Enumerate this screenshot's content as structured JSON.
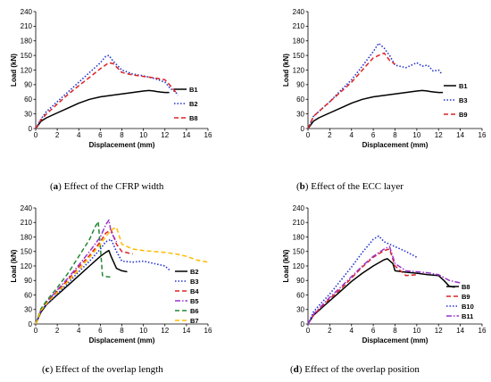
{
  "captions": [
    {
      "label": "a",
      "text": "Effect of the CFRP width"
    },
    {
      "label": "b",
      "text": "Effect of the ECC layer"
    },
    {
      "label": "c",
      "text": "Effect of the overlap length"
    },
    {
      "label": "d",
      "text": "Effect of the overlap position"
    }
  ],
  "chart_data": [
    {
      "type": "line",
      "xlabel": "Displacement (mm)",
      "ylabel": "Load (kN)",
      "xlim": [
        0,
        16
      ],
      "ylim": [
        0,
        240
      ],
      "xticks": [
        0,
        2,
        4,
        6,
        8,
        10,
        12,
        14,
        16
      ],
      "yticks": [
        0,
        30,
        60,
        90,
        120,
        150,
        180,
        210,
        240
      ],
      "grid": false,
      "legend_position": "right",
      "series": [
        {
          "name": "B1",
          "color": "#000000",
          "dash": "solid",
          "x": [
            0,
            0.5,
            1,
            2,
            3,
            4,
            5,
            6,
            7,
            8,
            9,
            10,
            10.5,
            11,
            11.2,
            11.6,
            12,
            12.4
          ],
          "y": [
            0,
            15,
            22,
            32,
            42,
            52,
            60,
            65,
            68,
            71,
            74,
            77,
            78,
            77,
            76,
            75,
            74,
            74
          ]
        },
        {
          "name": "B2",
          "color": "#2233cc",
          "dash": "dot",
          "x": [
            0,
            0.5,
            1,
            2,
            3,
            4,
            5,
            6,
            6.5,
            6.8,
            7.2,
            8,
            9,
            10,
            11,
            12,
            12.5,
            13,
            13.2
          ],
          "y": [
            0,
            20,
            35,
            55,
            75,
            95,
            115,
            135,
            148,
            150,
            138,
            120,
            112,
            108,
            103,
            95,
            82,
            75,
            68
          ]
        },
        {
          "name": "B8",
          "color": "#dd2222",
          "dash": "dash",
          "x": [
            0,
            0.5,
            1,
            2,
            3,
            4,
            5,
            6,
            6.8,
            7.2,
            8,
            9,
            10,
            11,
            12,
            12.5,
            13
          ],
          "y": [
            0,
            18,
            30,
            50,
            70,
            88,
            105,
            123,
            135,
            133,
            115,
            110,
            107,
            104,
            100,
            88,
            75
          ]
        }
      ]
    },
    {
      "type": "line",
      "xlabel": "Displacement (mm)",
      "ylabel": "Load (kN)",
      "xlim": [
        0,
        16
      ],
      "ylim": [
        0,
        240
      ],
      "xticks": [
        0,
        2,
        4,
        6,
        8,
        10,
        12,
        14,
        16
      ],
      "yticks": [
        0,
        30,
        60,
        90,
        120,
        150,
        180,
        210,
        240
      ],
      "grid": false,
      "legend_position": "right",
      "series": [
        {
          "name": "B1",
          "color": "#000000",
          "dash": "solid",
          "x": [
            0,
            0.5,
            1,
            2,
            3,
            4,
            5,
            6,
            7,
            8,
            9,
            10,
            10.5,
            11,
            11.2,
            11.6,
            12,
            12.4
          ],
          "y": [
            0,
            15,
            22,
            32,
            42,
            52,
            60,
            65,
            68,
            71,
            74,
            77,
            78,
            77,
            76,
            75,
            74,
            74
          ]
        },
        {
          "name": "B3",
          "color": "#2233cc",
          "dash": "dot",
          "x": [
            0,
            0.5,
            1,
            2,
            3,
            4,
            5,
            6,
            6.5,
            7,
            7.5,
            8,
            9,
            10,
            10.5,
            11,
            11.5,
            12,
            12.3
          ],
          "y": [
            0,
            25,
            35,
            55,
            78,
            100,
            128,
            158,
            175,
            165,
            150,
            130,
            125,
            135,
            128,
            130,
            118,
            120,
            112
          ]
        },
        {
          "name": "B9",
          "color": "#dd2222",
          "dash": "dash",
          "x": [
            0,
            0.5,
            1,
            2,
            3,
            4,
            5,
            6,
            6.5,
            7,
            7.5,
            8
          ],
          "y": [
            0,
            25,
            35,
            55,
            75,
            95,
            120,
            145,
            150,
            155,
            140,
            132
          ]
        }
      ]
    },
    {
      "type": "line",
      "xlabel": "Displacement (mm)",
      "ylabel": "Load (kN)",
      "xlim": [
        0,
        16
      ],
      "ylim": [
        0,
        240
      ],
      "xticks": [
        0,
        2,
        4,
        6,
        8,
        10,
        12,
        14,
        16
      ],
      "yticks": [
        0,
        30,
        60,
        90,
        120,
        150,
        180,
        210,
        240
      ],
      "grid": false,
      "legend_position": "right",
      "series": [
        {
          "name": "B2",
          "color": "#000000",
          "dash": "solid",
          "x": [
            0,
            0.5,
            1,
            2,
            3,
            4,
            5,
            6,
            6.5,
            6.8,
            7,
            7.5,
            8,
            8.5
          ],
          "y": [
            0,
            25,
            40,
            60,
            80,
            100,
            120,
            140,
            148,
            152,
            140,
            115,
            110,
            108
          ]
        },
        {
          "name": "B3",
          "color": "#2233cc",
          "dash": "dot",
          "x": [
            0,
            0.5,
            1,
            2,
            3,
            4,
            5,
            6,
            6.5,
            7,
            7.5,
            8,
            9,
            10,
            11,
            12,
            12.5
          ],
          "y": [
            0,
            28,
            40,
            62,
            85,
            108,
            130,
            155,
            170,
            175,
            150,
            130,
            128,
            130,
            125,
            120,
            110
          ]
        },
        {
          "name": "B4",
          "color": "#dd2222",
          "dash": "dash",
          "x": [
            0,
            0.5,
            1,
            2,
            3,
            4,
            5,
            6,
            6.5,
            7,
            7.5,
            8,
            9
          ],
          "y": [
            0,
            30,
            45,
            68,
            92,
            118,
            142,
            170,
            188,
            195,
            165,
            150,
            145
          ]
        },
        {
          "name": "B5",
          "color": "#9933cc",
          "dash": "dashdot",
          "x": [
            0,
            0.5,
            1,
            2,
            3,
            4,
            5,
            6,
            6.5,
            6.8,
            7,
            7.5
          ],
          "y": [
            0,
            30,
            45,
            70,
            95,
            122,
            150,
            180,
            205,
            215,
            190,
            170
          ]
        },
        {
          "name": "B6",
          "color": "#228833",
          "dash": "dash",
          "x": [
            0,
            0.5,
            1,
            2,
            3,
            4,
            5,
            5.5,
            5.8,
            6,
            6.2,
            6.5,
            7
          ],
          "y": [
            0,
            32,
            48,
            75,
            105,
            140,
            175,
            200,
            212,
            160,
            100,
            98,
            97
          ]
        },
        {
          "name": "B7",
          "color": "#ffbb00",
          "dash": "dash",
          "x": [
            0,
            0.5,
            1,
            2,
            3,
            4,
            5,
            6,
            7,
            7.5,
            8,
            9,
            10,
            11,
            12,
            13,
            14,
            15,
            16
          ],
          "y": [
            0,
            28,
            42,
            65,
            88,
            112,
            138,
            165,
            195,
            200,
            165,
            155,
            152,
            150,
            148,
            145,
            140,
            132,
            128
          ]
        }
      ]
    },
    {
      "type": "line",
      "xlabel": "Displacement (mm)",
      "ylabel": "Load (kN)",
      "xlim": [
        0,
        16
      ],
      "ylim": [
        0,
        240
      ],
      "xticks": [
        0,
        2,
        4,
        6,
        8,
        10,
        12,
        14,
        16
      ],
      "yticks": [
        0,
        30,
        60,
        90,
        120,
        150,
        180,
        210,
        240
      ],
      "grid": false,
      "legend_position": "right",
      "series": [
        {
          "name": "B8",
          "color": "#000000",
          "dash": "solid",
          "x": [
            0,
            0.5,
            1,
            2,
            3,
            4,
            5,
            6,
            7,
            7.3,
            7.8,
            8,
            9,
            10,
            11,
            12,
            12.5,
            13,
            13.5
          ],
          "y": [
            0,
            18,
            28,
            48,
            68,
            88,
            105,
            120,
            133,
            135,
            125,
            110,
            107,
            105,
            102,
            100,
            90,
            78,
            76
          ]
        },
        {
          "name": "B9",
          "color": "#dd2222",
          "dash": "dash",
          "x": [
            0,
            0.5,
            1,
            2,
            3,
            4,
            5,
            6,
            7,
            7.5,
            8,
            9,
            10
          ],
          "y": [
            0,
            18,
            30,
            52,
            72,
            95,
            118,
            138,
            152,
            155,
            120,
            100,
            102
          ]
        },
        {
          "name": "B10",
          "color": "#2233cc",
          "dash": "dot",
          "x": [
            0,
            0.5,
            1,
            2,
            3,
            4,
            5,
            6,
            6.5,
            7,
            7.5,
            8,
            9,
            10
          ],
          "y": [
            0,
            25,
            38,
            62,
            90,
            118,
            148,
            175,
            182,
            170,
            165,
            160,
            150,
            138
          ]
        },
        {
          "name": "B11",
          "color": "#9933cc",
          "dash": "dashdot",
          "x": [
            0,
            0.5,
            1,
            2,
            3,
            4,
            5,
            6,
            7,
            7.5,
            8,
            9,
            10,
            11,
            12,
            13,
            14
          ],
          "y": [
            0,
            20,
            32,
            55,
            76,
            98,
            120,
            140,
            155,
            160,
            125,
            110,
            108,
            106,
            102,
            90,
            85
          ]
        }
      ]
    }
  ]
}
